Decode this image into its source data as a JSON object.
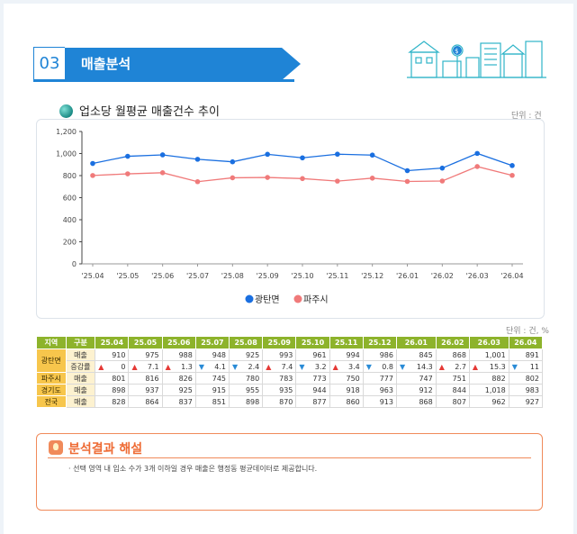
{
  "section": {
    "number": "03",
    "title": "매출분석"
  },
  "subtitle": "업소당 월평균 매출건수 추이",
  "chart_unit": "단위 : 건",
  "table_unit": "단위 : 건, %",
  "chart_data": {
    "type": "line",
    "categories": [
      "'25.04",
      "'25.05",
      "'25.06",
      "'25.07",
      "'25.08",
      "'25.09",
      "'25.10",
      "'25.11",
      "'25.12",
      "'26.01",
      "'26.02",
      "'26.03",
      "'26.04"
    ],
    "ylim": [
      0,
      1200
    ],
    "yticks": [
      "0",
      "200",
      "400",
      "600",
      "800",
      "1,000",
      "1,200"
    ],
    "grid": false,
    "legend": "bottom-center",
    "series": [
      {
        "name": "광탄면",
        "color": "#1a6fe0",
        "values": [
          910,
          975,
          988,
          948,
          925,
          993,
          961,
          994,
          986,
          845,
          868,
          1001,
          891
        ]
      },
      {
        "name": "파주시",
        "color": "#f07a7a",
        "values": [
          801,
          816,
          826,
          745,
          780,
          783,
          773,
          750,
          777,
          747,
          751,
          882,
          802
        ]
      }
    ]
  },
  "table": {
    "headers": [
      "지역",
      "구분",
      "25.04",
      "25.05",
      "25.06",
      "25.07",
      "25.08",
      "25.09",
      "25.10",
      "25.11",
      "25.12",
      "26.01",
      "26.02",
      "26.03",
      "26.04"
    ],
    "rows": [
      {
        "region": "광탄면",
        "kind": "매출",
        "cells": [
          "910",
          "975",
          "988",
          "948",
          "925",
          "993",
          "961",
          "994",
          "986",
          "845",
          "868",
          "1,001",
          "891"
        ]
      },
      {
        "kind": "증감률",
        "cells": [
          "0",
          "7.1",
          "1.3",
          "4.1",
          "2.4",
          "7.4",
          "3.2",
          "3.4",
          "0.8",
          "14.3",
          "2.7",
          "15.3",
          "11"
        ],
        "dirs": [
          "up",
          "up",
          "up",
          "down",
          "down",
          "up",
          "down",
          "up",
          "down",
          "down",
          "up",
          "up",
          "down"
        ]
      },
      {
        "region": "파주시",
        "kind": "매출",
        "cells": [
          "801",
          "816",
          "826",
          "745",
          "780",
          "783",
          "773",
          "750",
          "777",
          "747",
          "751",
          "882",
          "802"
        ]
      },
      {
        "region": "경기도",
        "kind": "매출",
        "cells": [
          "898",
          "937",
          "925",
          "915",
          "955",
          "935",
          "944",
          "918",
          "963",
          "912",
          "844",
          "1,018",
          "983"
        ]
      },
      {
        "region": "전국",
        "kind": "매출",
        "cells": [
          "828",
          "864",
          "837",
          "851",
          "898",
          "870",
          "877",
          "860",
          "913",
          "868",
          "807",
          "962",
          "927"
        ]
      }
    ]
  },
  "analysis": {
    "title": "분석결과 해설",
    "note": "· 선택 영역 내 입소 수가 3개 이하일 경우 매출은 행정동 평균데이터로 제공합니다."
  }
}
